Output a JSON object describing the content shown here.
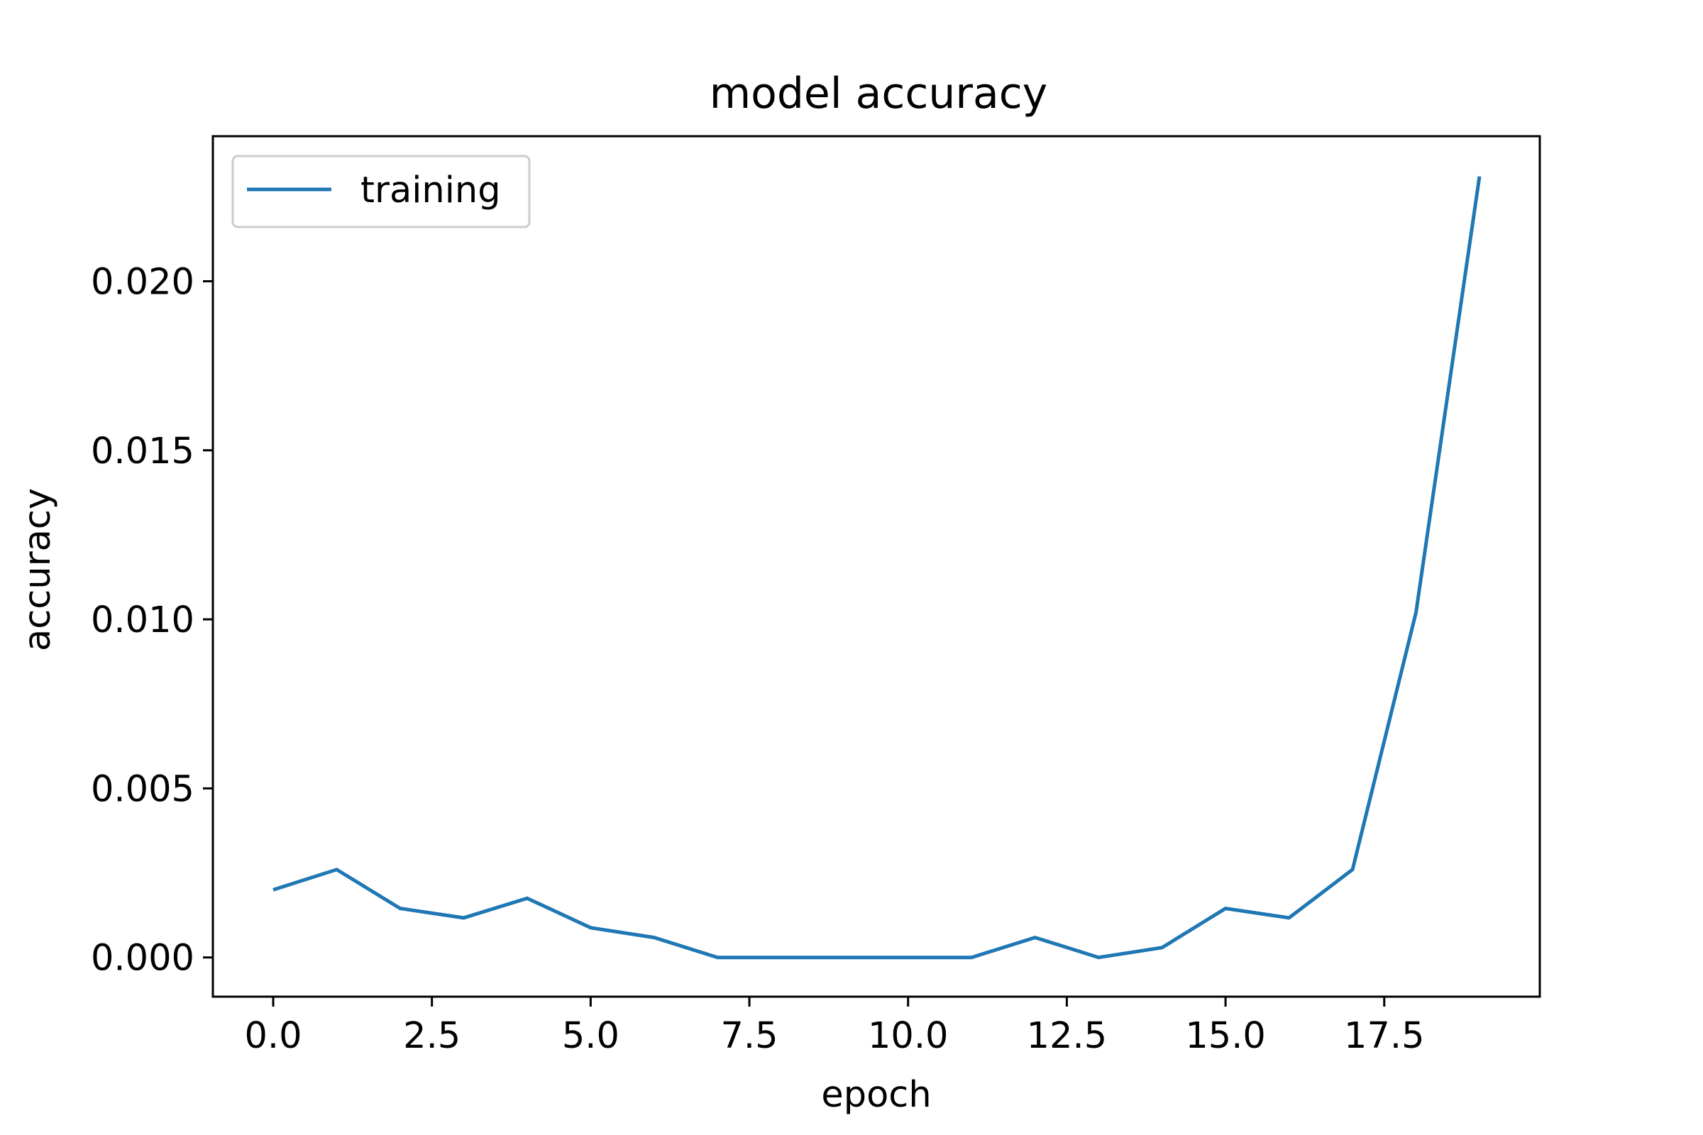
{
  "chart_data": {
    "type": "line",
    "title": "model accuracy",
    "xlabel": "epoch",
    "ylabel": "accuracy",
    "xlim": [
      -0.95,
      19.95
    ],
    "ylim": [
      -0.00116,
      0.02429
    ],
    "x_ticks": [
      0.0,
      2.5,
      5.0,
      7.5,
      10.0,
      12.5,
      15.0,
      17.5
    ],
    "x_tick_labels": [
      "0.0",
      "2.5",
      "5.0",
      "7.5",
      "10.0",
      "12.5",
      "15.0",
      "17.5"
    ],
    "y_ticks": [
      0.0,
      0.005,
      0.01,
      0.015,
      0.02
    ],
    "y_tick_labels": [
      "0.000",
      "0.005",
      "0.010",
      "0.015",
      "0.020"
    ],
    "grid": false,
    "legend_position": "top-left",
    "series": [
      {
        "name": "training",
        "color": "#1f77b4",
        "x": [
          0,
          1,
          2,
          3,
          4,
          5,
          6,
          7,
          8,
          9,
          10,
          11,
          12,
          13,
          14,
          15,
          16,
          17,
          18,
          19
        ],
        "y": [
          0.002,
          0.0026,
          0.00145,
          0.00117,
          0.00175,
          0.00088,
          0.00059,
          0.0,
          0.0,
          0.0,
          0.0,
          0.0,
          0.00059,
          0.0,
          0.00029,
          0.00145,
          0.00117,
          0.0026,
          0.0102,
          0.0231
        ]
      }
    ]
  }
}
